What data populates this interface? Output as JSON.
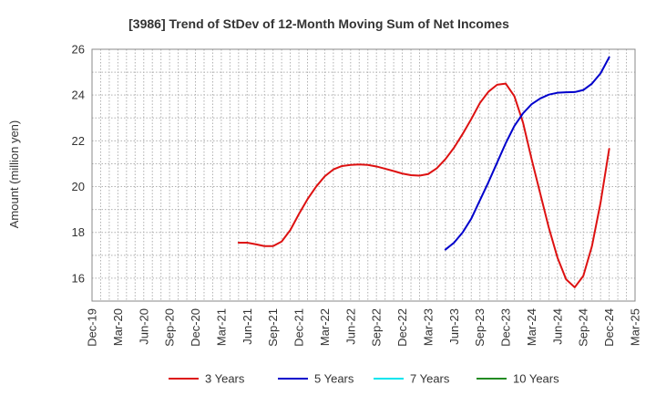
{
  "chart_data": {
    "type": "line",
    "title": "[3986]  Trend of StDev of 12-Month Moving Sum of Net Incomes",
    "ylabel": "Amount (million yen)",
    "xlabel": "",
    "ylim": [
      15,
      26
    ],
    "yticks": [
      16,
      18,
      20,
      22,
      24,
      26
    ],
    "x_tick_labels": [
      "Dec-19",
      "Mar-20",
      "Jun-20",
      "Sep-20",
      "Dec-20",
      "Mar-21",
      "Jun-21",
      "Sep-21",
      "Dec-21",
      "Mar-22",
      "Jun-22",
      "Sep-22",
      "Dec-22",
      "Mar-23",
      "Jun-23",
      "Sep-23",
      "Dec-23",
      "Mar-24",
      "Jun-24",
      "Sep-24",
      "Dec-24",
      "Mar-25"
    ],
    "x_start": "2019-12",
    "x_end": "2025-03",
    "grid": true,
    "legend_position": "bottom",
    "series": [
      {
        "name": "3 Years",
        "color": "#dd1111",
        "x": [
          "2021-05",
          "2021-06",
          "2021-07",
          "2021-08",
          "2021-09",
          "2021-10",
          "2021-11",
          "2021-12",
          "2022-01",
          "2022-02",
          "2022-03",
          "2022-04",
          "2022-05",
          "2022-06",
          "2022-07",
          "2022-08",
          "2022-09",
          "2022-10",
          "2022-11",
          "2022-12",
          "2023-01",
          "2023-02",
          "2023-03",
          "2023-04",
          "2023-05",
          "2023-06",
          "2023-07",
          "2023-08",
          "2023-09",
          "2023-10",
          "2023-11",
          "2023-12",
          "2024-01",
          "2024-02",
          "2024-03",
          "2024-04",
          "2024-05",
          "2024-06",
          "2024-07",
          "2024-08",
          "2024-09",
          "2024-10",
          "2024-11",
          "2024-12"
        ],
        "values": [
          17.55,
          17.55,
          17.48,
          17.4,
          17.4,
          17.6,
          18.1,
          18.8,
          19.45,
          20.0,
          20.45,
          20.75,
          20.9,
          20.95,
          20.97,
          20.95,
          20.88,
          20.78,
          20.68,
          20.57,
          20.5,
          20.48,
          20.55,
          20.8,
          21.2,
          21.7,
          22.3,
          22.95,
          23.65,
          24.15,
          24.45,
          24.5,
          23.95,
          22.8,
          21.2,
          19.7,
          18.2,
          16.9,
          15.95,
          15.6,
          16.1,
          17.4,
          19.3,
          21.65
        ]
      },
      {
        "name": "5 Years",
        "color": "#0000cc",
        "x": [
          "2023-05",
          "2023-06",
          "2023-07",
          "2023-08",
          "2023-09",
          "2023-10",
          "2023-11",
          "2023-12",
          "2024-01",
          "2024-02",
          "2024-03",
          "2024-04",
          "2024-05",
          "2024-06",
          "2024-07",
          "2024-08",
          "2024-09",
          "2024-10",
          "2024-11",
          "2024-12"
        ],
        "values": [
          17.25,
          17.55,
          18.0,
          18.6,
          19.4,
          20.2,
          21.05,
          21.9,
          22.65,
          23.2,
          23.6,
          23.85,
          24.02,
          24.1,
          24.12,
          24.13,
          24.22,
          24.5,
          24.95,
          25.65
        ]
      },
      {
        "name": "7 Years",
        "color": "#00e5ee",
        "x": [],
        "values": []
      },
      {
        "name": "10 Years",
        "color": "#228b22",
        "x": [],
        "values": []
      }
    ]
  }
}
